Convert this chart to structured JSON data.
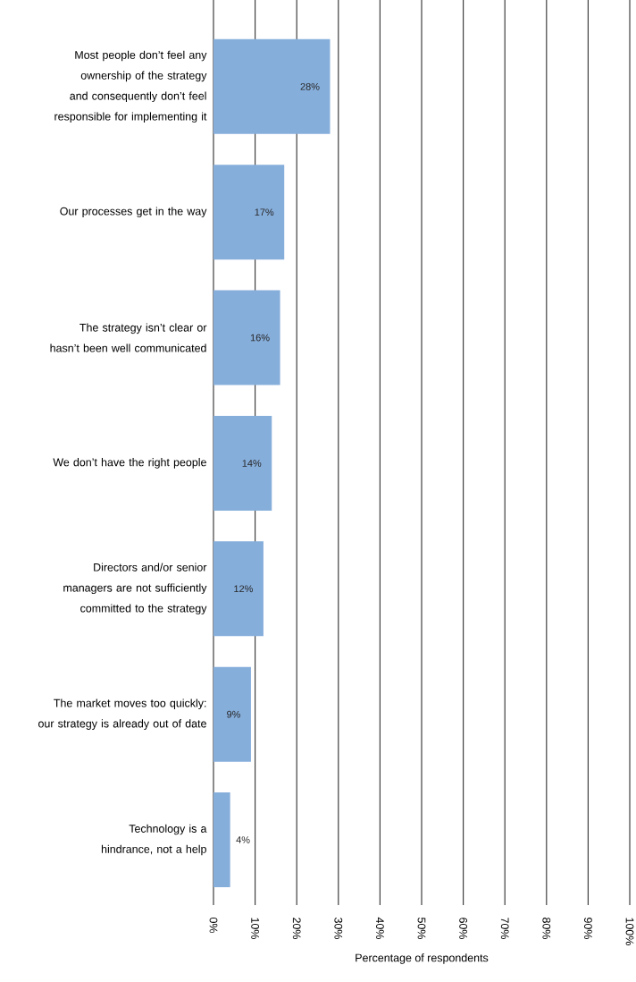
{
  "chart_data": {
    "type": "bar",
    "orientation": "horizontal",
    "xlabel": "Percentage of respondents",
    "categories": [
      "Most people don’t feel any ownership of the strategy and consequently don’t feel responsible for implementing it",
      "Our processes get in the way",
      "The strategy isn’t clear or hasn’t been well communicated",
      "We don’t have the right people",
      "Directors and/or senior managers are not sufficiently committed to the strategy",
      "The market moves too quickly: our strategy is already out of date",
      "Technology is a hindrance, not a help"
    ],
    "values": [
      28,
      17,
      16,
      14,
      12,
      9,
      4
    ],
    "color": "#86aedb",
    "data_labels": true,
    "value_labels": [
      "28%",
      "17%",
      "16%",
      "14%",
      "12%",
      "9%",
      "4%"
    ],
    "xlim": [
      0,
      100
    ],
    "xticks": [
      {
        "value": 0,
        "label": "0%"
      },
      {
        "value": 10,
        "label": "10%"
      },
      {
        "value": 20,
        "label": "20%"
      },
      {
        "value": 30,
        "label": "30%"
      },
      {
        "value": 40,
        "label": "40%"
      },
      {
        "value": 50,
        "label": "50%"
      },
      {
        "value": 60,
        "label": "60%"
      },
      {
        "value": 70,
        "label": "70%"
      },
      {
        "value": 80,
        "label": "80%"
      },
      {
        "value": 90,
        "label": "90%"
      },
      {
        "value": 100,
        "label": "100%"
      }
    ],
    "grid": "x"
  }
}
